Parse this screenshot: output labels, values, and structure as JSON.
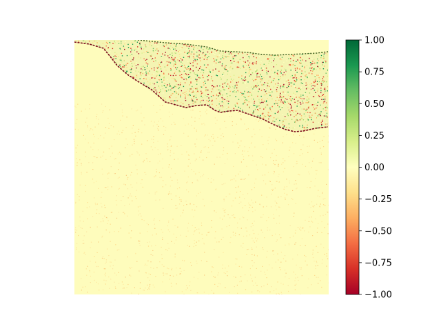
{
  "chart_data": {
    "type": "heatmap",
    "title": "",
    "xlabel": "",
    "ylabel": "",
    "axes_visible": false,
    "colormap": "RdYlGn",
    "colorbar": {
      "position": "right",
      "vmin": -1.0,
      "vmax": 1.0,
      "ticks": [
        -1.0,
        -0.75,
        -0.5,
        -0.25,
        0.0,
        0.25,
        0.5,
        0.75,
        1.0
      ],
      "tick_labels": [
        "−1.00",
        "−0.75",
        "−0.50",
        "−0.25",
        "0.00",
        "0.25",
        "0.50",
        "0.75",
        "1.00"
      ]
    },
    "dominant_value": 0.0,
    "features": {
      "upper_band": "dense mixed positive and negative values near the top edge, between the two boundary lines",
      "boundary_lines": "thin dark red and green edge traces along both sides of the band",
      "lower_region": "near-zero values with faint negative texture"
    }
  }
}
